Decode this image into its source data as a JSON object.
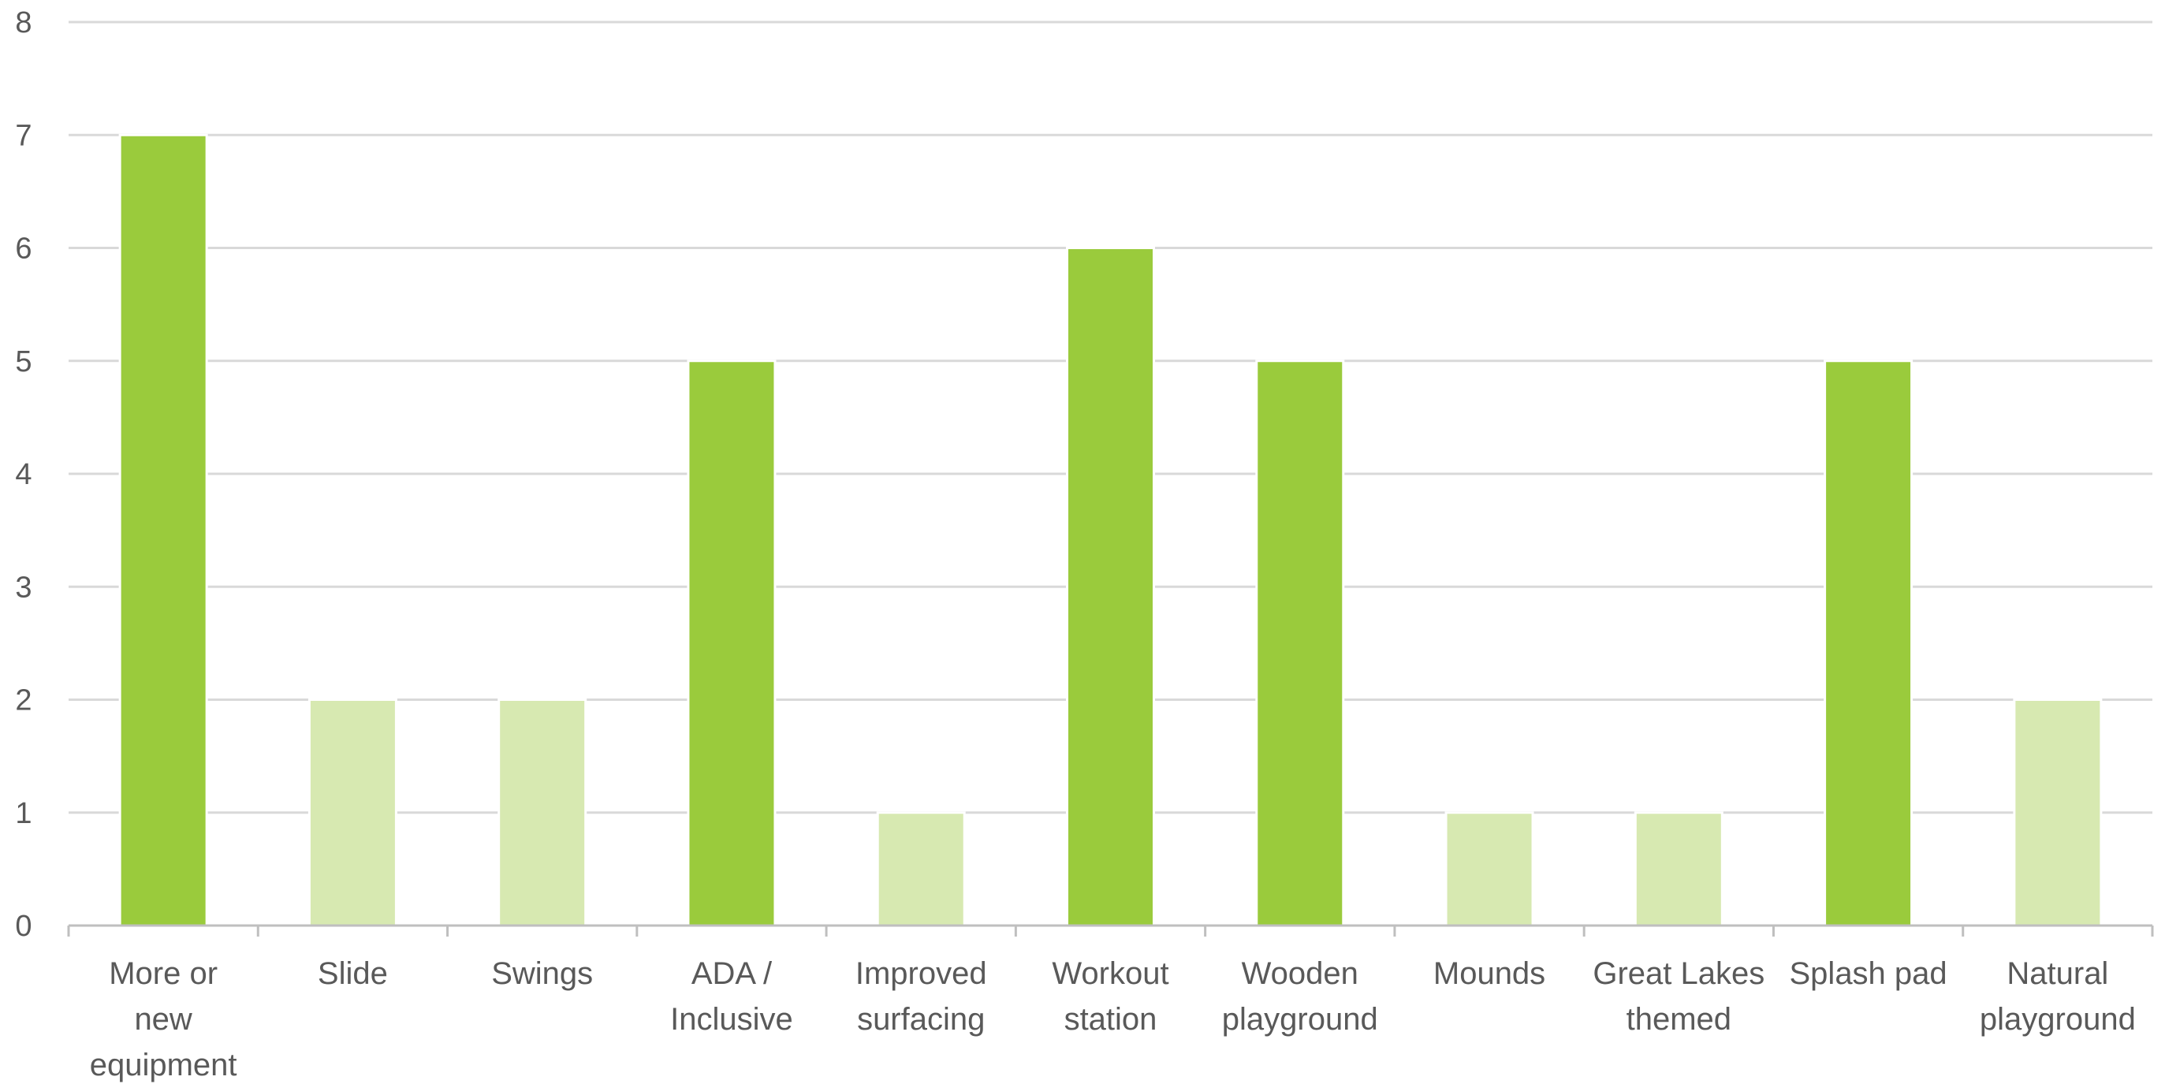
{
  "chart_data": {
    "type": "bar",
    "categories": [
      [
        "More or",
        "new",
        "equipment"
      ],
      [
        "Slide"
      ],
      [
        "Swings"
      ],
      [
        "ADA /",
        "Inclusive"
      ],
      [
        "Improved",
        "surfacing"
      ],
      [
        "Workout",
        "station"
      ],
      [
        "Wooden",
        "playground"
      ],
      [
        "Mounds"
      ],
      [
        "Great Lakes",
        "themed"
      ],
      [
        "Splash pad"
      ],
      [
        "Natural",
        "playground"
      ]
    ],
    "values": [
      7,
      2,
      2,
      5,
      1,
      6,
      5,
      1,
      1,
      5,
      2
    ],
    "ylim": [
      0,
      8
    ],
    "yticks": [
      "0",
      "1",
      "2",
      "3",
      "4",
      "5",
      "6",
      "7",
      "8"
    ],
    "grid": true,
    "colors": {
      "high": "#9ACB3C",
      "low": "#D7E9B1",
      "grid": "#D9D9D9",
      "axis": "#BFBFBF",
      "text": "#595959"
    },
    "highlight_threshold": 5
  }
}
